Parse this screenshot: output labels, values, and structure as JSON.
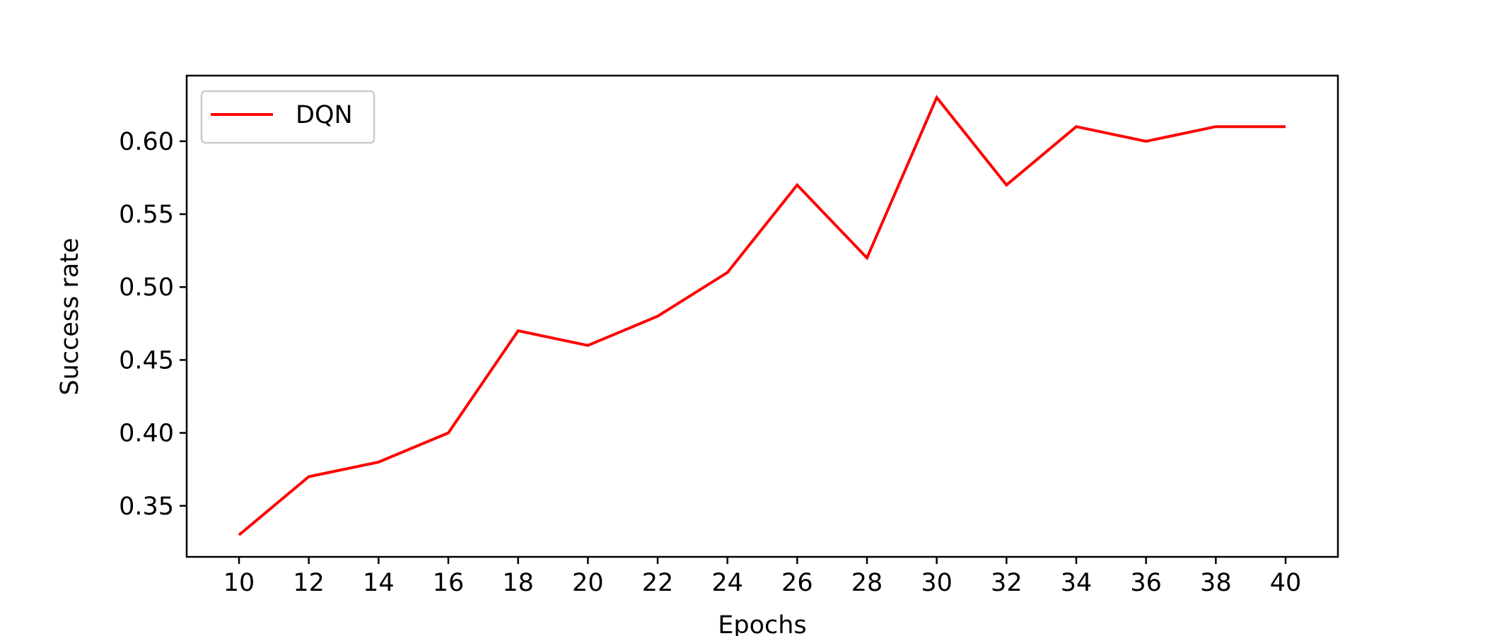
{
  "chart_data": {
    "type": "line",
    "title": "",
    "xlabel": "Epochs",
    "ylabel": "Success rate",
    "x": [
      10,
      12,
      14,
      16,
      18,
      20,
      22,
      24,
      26,
      28,
      30,
      32,
      34,
      36,
      38,
      40
    ],
    "xticks": [
      "10",
      "12",
      "14",
      "16",
      "18",
      "20",
      "22",
      "24",
      "26",
      "28",
      "30",
      "32",
      "34",
      "36",
      "38",
      "40"
    ],
    "yticks": [
      "0.35",
      "0.40",
      "0.45",
      "0.50",
      "0.55",
      "0.60"
    ],
    "xlim": [
      8.5,
      41.5
    ],
    "ylim": [
      0.315,
      0.645
    ],
    "grid": false,
    "legend_position": "top-left",
    "series": [
      {
        "name": "DQN",
        "color": "#ff0000",
        "values": [
          0.33,
          0.37,
          0.38,
          0.4,
          0.47,
          0.46,
          0.48,
          0.51,
          0.57,
          0.52,
          0.63,
          0.57,
          0.61,
          0.6,
          0.61,
          0.61
        ]
      }
    ]
  }
}
